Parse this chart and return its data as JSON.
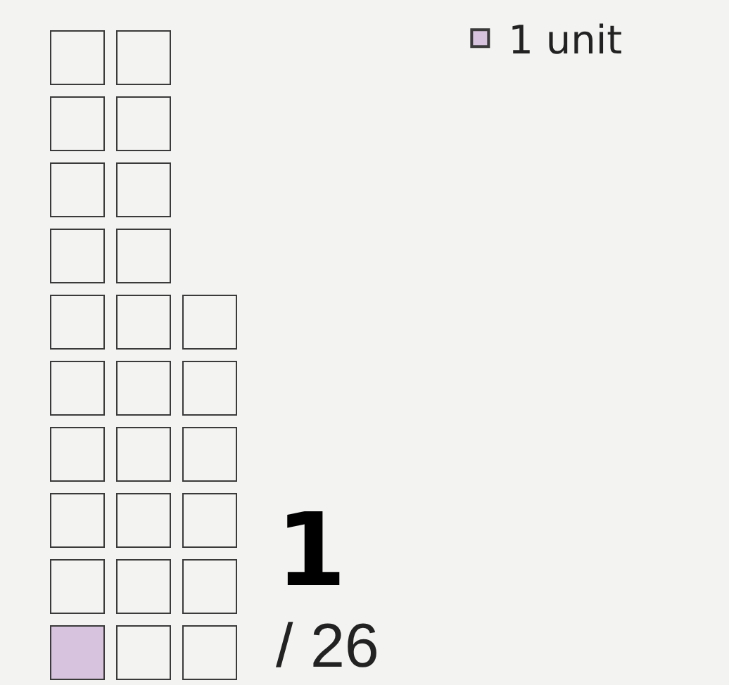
{
  "chart_data": {
    "type": "other",
    "series": [
      {
        "name": "1 unit",
        "color": "#d8c3df",
        "values": [
          1
        ]
      }
    ],
    "data_labels": true,
    "annotations": [
      "/ 26"
    ],
    "legend": "top right"
  }
}
